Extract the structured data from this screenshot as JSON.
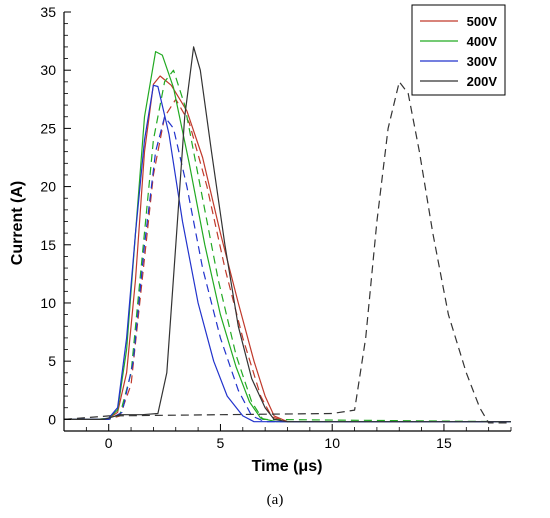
{
  "chart_data": {
    "type": "line",
    "title": "",
    "xlabel": "Time (μs)",
    "ylabel": "Current (A)",
    "xlim": [
      -2,
      18
    ],
    "ylim": [
      -1,
      35
    ],
    "xticks": [
      0,
      5,
      10,
      15
    ],
    "yticks": [
      0,
      5,
      10,
      15,
      20,
      25,
      30,
      35
    ],
    "grid": false,
    "legend_position": "top-right",
    "line_styles": [
      "solid",
      "dashed"
    ],
    "series": [
      {
        "name": "500V",
        "color": "#c0392b",
        "variants": [
          {
            "style": "solid",
            "points": [
              [
                -2,
                0
              ],
              [
                -0.5,
                0
              ],
              [
                0,
                0.1
              ],
              [
                0.4,
                0.6
              ],
              [
                0.8,
                4
              ],
              [
                1.2,
                12
              ],
              [
                1.6,
                23
              ],
              [
                2,
                28.8
              ],
              [
                2.3,
                29.5
              ],
              [
                2.8,
                28.7
              ],
              [
                3.5,
                26.5
              ],
              [
                4.2,
                22.5
              ],
              [
                5,
                16
              ],
              [
                5.8,
                10
              ],
              [
                6.5,
                5
              ],
              [
                7,
                2
              ],
              [
                7.4,
                0.3
              ],
              [
                8,
                -0.2
              ],
              [
                18,
                -0.2
              ]
            ]
          },
          {
            "style": "dashed",
            "points": [
              [
                -2,
                0
              ],
              [
                0,
                0
              ],
              [
                0.5,
                0.3
              ],
              [
                1,
                3
              ],
              [
                1.5,
                12
              ],
              [
                2,
                21
              ],
              [
                2.5,
                26
              ],
              [
                3,
                27.5
              ],
              [
                3.6,
                25.5
              ],
              [
                4.4,
                20
              ],
              [
                5.2,
                13
              ],
              [
                6,
                7
              ],
              [
                6.8,
                2
              ],
              [
                7.3,
                0.2
              ],
              [
                8,
                -0.2
              ],
              [
                18,
                -0.2
              ]
            ]
          }
        ]
      },
      {
        "name": "400V",
        "color": "#22aa22",
        "variants": [
          {
            "style": "solid",
            "points": [
              [
                -2,
                0
              ],
              [
                -0.5,
                0
              ],
              [
                0,
                0.1
              ],
              [
                0.4,
                0.8
              ],
              [
                0.8,
                6
              ],
              [
                1.2,
                16
              ],
              [
                1.6,
                26
              ],
              [
                2.1,
                31.6
              ],
              [
                2.4,
                31.3
              ],
              [
                2.9,
                28.5
              ],
              [
                3.6,
                22
              ],
              [
                4.3,
                15
              ],
              [
                5,
                9
              ],
              [
                5.7,
                4.5
              ],
              [
                6.3,
                1.5
              ],
              [
                6.8,
                0.1
              ],
              [
                7.5,
                -0.2
              ],
              [
                18,
                -0.2
              ]
            ]
          },
          {
            "style": "dashed",
            "points": [
              [
                -2,
                0
              ],
              [
                0,
                0
              ],
              [
                0.5,
                0.4
              ],
              [
                1,
                4
              ],
              [
                1.5,
                14
              ],
              [
                2,
                24
              ],
              [
                2.5,
                29
              ],
              [
                2.9,
                30
              ],
              [
                3.4,
                27
              ],
              [
                4.1,
                20
              ],
              [
                4.9,
                12
              ],
              [
                5.7,
                5.5
              ],
              [
                6.4,
                1.5
              ],
              [
                6.9,
                0
              ],
              [
                18,
                -0.2
              ]
            ]
          }
        ]
      },
      {
        "name": "300V",
        "color": "#2233cc",
        "variants": [
          {
            "style": "solid",
            "points": [
              [
                -2,
                0
              ],
              [
                -0.3,
                0
              ],
              [
                0,
                0.1
              ],
              [
                0.4,
                1
              ],
              [
                0.8,
                7
              ],
              [
                1.2,
                16
              ],
              [
                1.6,
                24
              ],
              [
                2,
                28.7
              ],
              [
                2.2,
                28.6
              ],
              [
                2.7,
                24.5
              ],
              [
                3.3,
                17
              ],
              [
                4,
                10
              ],
              [
                4.7,
                5
              ],
              [
                5.3,
                2
              ],
              [
                6,
                0.3
              ],
              [
                6.5,
                -0.2
              ],
              [
                18,
                -0.2
              ]
            ]
          },
          {
            "style": "dashed",
            "points": [
              [
                -2,
                0
              ],
              [
                0,
                0
              ],
              [
                0.6,
                0.6
              ],
              [
                1.1,
                5
              ],
              [
                1.6,
                15
              ],
              [
                2.1,
                23
              ],
              [
                2.5,
                26
              ],
              [
                2.9,
                25
              ],
              [
                3.5,
                20
              ],
              [
                4.2,
                13
              ],
              [
                5,
                7
              ],
              [
                5.8,
                2.5
              ],
              [
                6.4,
                0.3
              ],
              [
                7,
                -0.2
              ],
              [
                18,
                -0.2
              ]
            ]
          }
        ]
      },
      {
        "name": "200V",
        "color": "#333333",
        "variants": [
          {
            "style": "solid",
            "points": [
              [
                -2,
                0
              ],
              [
                -0.2,
                0
              ],
              [
                0.5,
                0.4
              ],
              [
                1.5,
                0.4
              ],
              [
                2.2,
                0.5
              ],
              [
                2.6,
                4
              ],
              [
                3,
                15
              ],
              [
                3.4,
                26
              ],
              [
                3.8,
                32
              ],
              [
                4.1,
                30
              ],
              [
                4.6,
                23
              ],
              [
                5.2,
                15
              ],
              [
                5.8,
                8
              ],
              [
                6.4,
                3.5
              ],
              [
                7,
                1
              ],
              [
                7.4,
                0
              ],
              [
                8,
                -0.2
              ],
              [
                18,
                -0.2
              ]
            ]
          },
          {
            "style": "dashed",
            "points": [
              [
                -2,
                0
              ],
              [
                0,
                0.3
              ],
              [
                5,
                0.4
              ],
              [
                10,
                0.5
              ],
              [
                11,
                0.8
              ],
              [
                11.5,
                7
              ],
              [
                12,
                17
              ],
              [
                12.5,
                25
              ],
              [
                13,
                29
              ],
              [
                13.4,
                28
              ],
              [
                13.9,
                23
              ],
              [
                14.5,
                16
              ],
              [
                15.2,
                9
              ],
              [
                16,
                4
              ],
              [
                16.6,
                1
              ],
              [
                17,
                -0.3
              ],
              [
                18,
                -0.3
              ]
            ]
          }
        ]
      }
    ]
  },
  "figure": {
    "caption": "(a)"
  }
}
